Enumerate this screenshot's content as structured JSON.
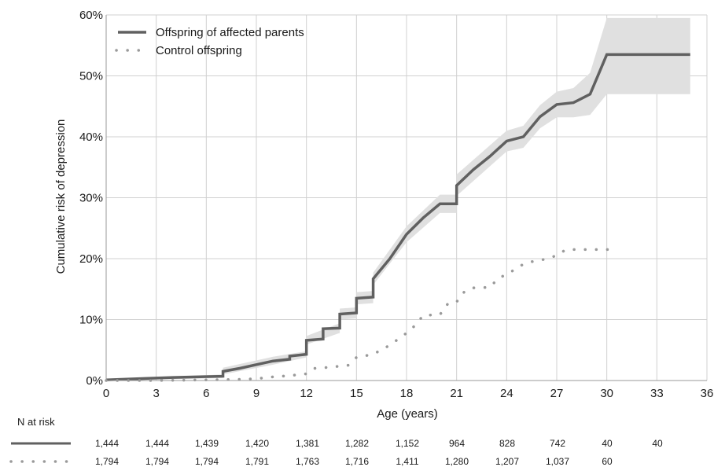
{
  "chart_data": {
    "type": "line",
    "subtype": "kaplan-meier cumulative incidence with confidence band",
    "xlabel": "Age (years)",
    "ylabel": "Cumulative risk of depression",
    "xlim": [
      0,
      36
    ],
    "ylim": [
      0,
      0.6
    ],
    "xticks": [
      0,
      3,
      6,
      9,
      12,
      15,
      18,
      21,
      24,
      27,
      30,
      33,
      36
    ],
    "xtick_labels": [
      "0",
      "3",
      "6",
      "9",
      "12",
      "15",
      "18",
      "21",
      "24",
      "27",
      "30",
      "33",
      "36"
    ],
    "yticks": [
      0,
      0.1,
      0.2,
      0.3,
      0.4,
      0.5,
      0.6
    ],
    "ytick_labels": [
      "0%",
      "10%",
      "20%",
      "30%",
      "40%",
      "50%",
      "60%"
    ],
    "grid": true,
    "legend_position": "top-left",
    "series": [
      {
        "name": "Offspring of affected parents",
        "style": "solid",
        "color": "#606060",
        "band_color": "#e0e0e0",
        "points": [
          [
            0,
            0.001
          ],
          [
            2,
            0.003
          ],
          [
            4,
            0.005
          ],
          [
            7,
            0.007
          ],
          [
            7,
            0.015
          ],
          [
            8,
            0.02
          ],
          [
            9,
            0.026
          ],
          [
            10,
            0.032
          ],
          [
            11,
            0.035
          ],
          [
            11,
            0.04
          ],
          [
            12,
            0.043
          ],
          [
            12,
            0.066
          ],
          [
            13,
            0.068
          ],
          [
            13,
            0.085
          ],
          [
            14,
            0.086
          ],
          [
            14,
            0.109
          ],
          [
            15,
            0.111
          ],
          [
            15,
            0.135
          ],
          [
            16,
            0.137
          ],
          [
            16,
            0.167
          ],
          [
            17,
            0.2
          ],
          [
            18,
            0.24
          ],
          [
            19,
            0.267
          ],
          [
            20,
            0.29
          ],
          [
            21,
            0.29
          ],
          [
            21,
            0.32
          ],
          [
            22,
            0.346
          ],
          [
            23,
            0.368
          ],
          [
            24,
            0.393
          ],
          [
            25,
            0.4
          ],
          [
            26,
            0.433
          ],
          [
            27,
            0.453
          ],
          [
            28,
            0.456
          ],
          [
            29,
            0.47
          ],
          [
            30,
            0.535
          ],
          [
            35,
            0.535
          ]
        ],
        "ci_upper": [
          [
            0,
            0.002
          ],
          [
            7,
            0.01
          ],
          [
            7,
            0.021
          ],
          [
            10,
            0.039
          ],
          [
            12,
            0.048
          ],
          [
            12,
            0.073
          ],
          [
            14,
            0.094
          ],
          [
            14,
            0.118
          ],
          [
            15,
            0.12
          ],
          [
            15,
            0.145
          ],
          [
            16,
            0.147
          ],
          [
            16,
            0.177
          ],
          [
            18,
            0.253
          ],
          [
            20,
            0.305
          ],
          [
            21,
            0.305
          ],
          [
            21,
            0.338
          ],
          [
            24,
            0.41
          ],
          [
            25,
            0.418
          ],
          [
            26,
            0.452
          ],
          [
            27,
            0.474
          ],
          [
            28,
            0.48
          ],
          [
            29,
            0.505
          ],
          [
            30,
            0.595
          ],
          [
            35,
            0.595
          ]
        ],
        "ci_lower": [
          [
            0,
            0.0
          ],
          [
            7,
            0.004
          ],
          [
            7,
            0.01
          ],
          [
            10,
            0.026
          ],
          [
            12,
            0.038
          ],
          [
            12,
            0.059
          ],
          [
            14,
            0.078
          ],
          [
            14,
            0.1
          ],
          [
            15,
            0.102
          ],
          [
            15,
            0.125
          ],
          [
            16,
            0.127
          ],
          [
            16,
            0.157
          ],
          [
            18,
            0.227
          ],
          [
            20,
            0.275
          ],
          [
            21,
            0.275
          ],
          [
            21,
            0.303
          ],
          [
            24,
            0.376
          ],
          [
            25,
            0.382
          ],
          [
            26,
            0.414
          ],
          [
            27,
            0.432
          ],
          [
            28,
            0.432
          ],
          [
            29,
            0.436
          ],
          [
            30,
            0.47
          ],
          [
            35,
            0.47
          ]
        ]
      },
      {
        "name": "Control offspring",
        "style": "dotted",
        "color": "#9a9a9a",
        "points": [
          [
            0,
            0.0
          ],
          [
            3,
            0.0
          ],
          [
            6,
            0.001
          ],
          [
            8,
            0.002
          ],
          [
            9,
            0.003
          ],
          [
            10,
            0.006
          ],
          [
            11,
            0.008
          ],
          [
            12,
            0.011
          ],
          [
            12.5,
            0.02
          ],
          [
            13.5,
            0.022
          ],
          [
            14.5,
            0.025
          ],
          [
            15,
            0.038
          ],
          [
            16,
            0.043
          ],
          [
            17,
            0.058
          ],
          [
            18,
            0.078
          ],
          [
            18.5,
            0.09
          ],
          [
            19,
            0.107
          ],
          [
            20,
            0.108
          ],
          [
            20.5,
            0.127
          ],
          [
            21,
            0.129
          ],
          [
            21.5,
            0.147
          ],
          [
            22,
            0.152
          ],
          [
            23,
            0.153
          ],
          [
            23.5,
            0.168
          ],
          [
            24,
            0.174
          ],
          [
            25,
            0.191
          ],
          [
            25.5,
            0.195
          ],
          [
            26,
            0.197
          ],
          [
            27,
            0.205
          ],
          [
            27.5,
            0.214
          ],
          [
            28,
            0.215
          ],
          [
            29,
            0.215
          ],
          [
            30.5,
            0.215
          ]
        ]
      }
    ],
    "n_at_risk": {
      "title": "N at risk",
      "offspring_affected": [
        "1,444",
        "1,444",
        "1,439",
        "1,420",
        "1,381",
        "1,282",
        "1,152",
        "964",
        "828",
        "742",
        "40",
        "40"
      ],
      "control": [
        "1,794",
        "1,794",
        "1,794",
        "1,791",
        "1,763",
        "1,716",
        "1,411",
        "1,280",
        "1,207",
        "1,037",
        "60"
      ]
    }
  }
}
